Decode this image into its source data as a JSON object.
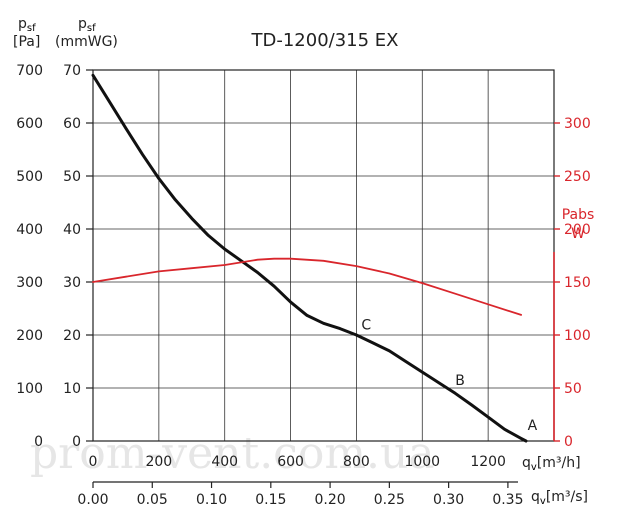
{
  "chart_data": {
    "type": "line",
    "title": "TD-1200/315 EX",
    "y_left_pa": {
      "label_symbol": "p",
      "label_sub": "sf",
      "unit": "[Pa]",
      "range": [
        0,
        700
      ],
      "ticks": [
        0,
        100,
        200,
        300,
        400,
        500,
        600,
        700
      ]
    },
    "y_left_mmwg": {
      "label_symbol": "p",
      "label_sub": "sf",
      "unit": "(mmWG)",
      "range": [
        0,
        70
      ],
      "ticks": [
        0,
        10,
        20,
        30,
        40,
        50,
        60,
        70
      ]
    },
    "y_right": {
      "label": "Pabs",
      "unit": "W",
      "range": [
        0,
        350
      ],
      "ticks": [
        0,
        50,
        100,
        150,
        200,
        250,
        300
      ],
      "color": "#d9262c"
    },
    "x_m3h": {
      "label_symbol": "q",
      "label_sub": "v",
      "unit": "[m³/h]",
      "range": [
        0,
        1400
      ],
      "ticks": [
        0,
        200,
        400,
        600,
        800,
        1000,
        1200
      ]
    },
    "x_m3s": {
      "label_symbol": "q",
      "label_sub": "v",
      "unit": "[m³/s]",
      "ticks": [
        "0.00",
        "0.05",
        "0.10",
        "0.15",
        "0.20",
        "0.25",
        "0.30",
        "0.35"
      ]
    },
    "grid": true,
    "series": [
      {
        "axis": "pressure_pa",
        "color": "#111111",
        "x": [
          0,
          50,
          100,
          150,
          200,
          250,
          300,
          350,
          400,
          450,
          500,
          550,
          600,
          650,
          700,
          750,
          800,
          850,
          900,
          950,
          1000,
          1050,
          1100,
          1150,
          1200,
          1250,
          1300,
          1315
        ],
        "y": [
          690,
          640,
          590,
          541,
          495,
          455,
          420,
          388,
          362,
          340,
          318,
          292,
          262,
          237,
          222,
          212,
          200,
          185,
          170,
          150,
          130,
          110,
          90,
          68,
          45,
          22,
          5,
          0
        ]
      },
      {
        "axis": "power_w",
        "color": "#d9262c",
        "x": [
          0,
          100,
          200,
          300,
          400,
          500,
          550,
          600,
          700,
          800,
          900,
          1000,
          1100,
          1200,
          1300
        ],
        "y": [
          150,
          155,
          160,
          163,
          166,
          171,
          172,
          172,
          170,
          165,
          158,
          149,
          139,
          129,
          119
        ]
      }
    ],
    "annotations": [
      {
        "label": "A",
        "x": 1320,
        "y": 30
      },
      {
        "label": "B",
        "x": 1100,
        "y": 115
      },
      {
        "label": "C",
        "x": 815,
        "y": 220
      }
    ]
  },
  "watermark": "prom-vent.com.ua"
}
